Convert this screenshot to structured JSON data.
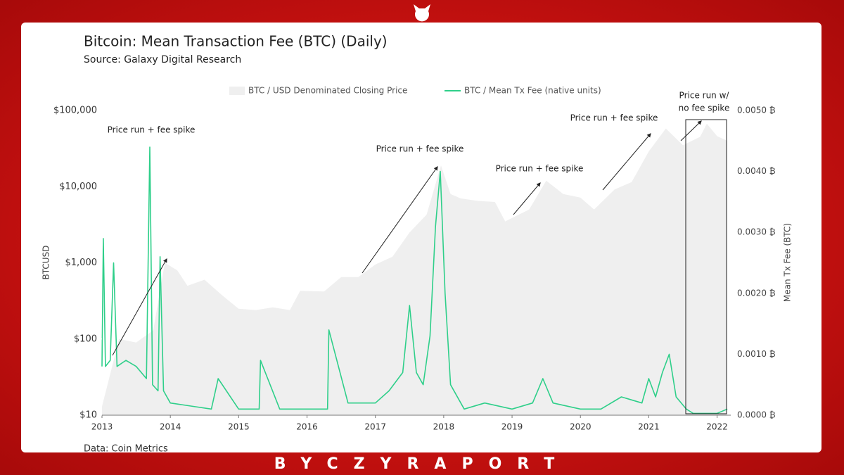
{
  "chart_data": {
    "type": "area-line",
    "title": "Bitcoin: Mean Transaction Fee (BTC) (Daily)",
    "subtitle": "Source: Galaxy Digital Research",
    "source": "Data: Coin Metrics",
    "brand": "BYCZYRAPORT",
    "y_label": "BTCUSD",
    "y2_label": "Mean Tx Fee (BTC)",
    "y_scale": "log",
    "xlim": [
      2013,
      2022.2
    ],
    "xticks": [
      2013,
      2014,
      2015,
      2016,
      2017,
      2018,
      2019,
      2020,
      2021,
      2022
    ],
    "ylim": [
      10,
      100000
    ],
    "yticks": [
      {
        "value": 10,
        "label": "$10"
      },
      {
        "value": 100,
        "label": "$100"
      },
      {
        "value": 1000,
        "label": "$1,000"
      },
      {
        "value": 10000,
        "label": "$10,000"
      },
      {
        "value": 100000,
        "label": "$100,000"
      }
    ],
    "y2lim": [
      0,
      0.005
    ],
    "y2ticks": [
      {
        "value": 0,
        "label": "0.0000 ₿"
      },
      {
        "value": 0.001,
        "label": "0.0010 ₿"
      },
      {
        "value": 0.002,
        "label": "0.0020 ₿"
      },
      {
        "value": 0.003,
        "label": "0.0030 ₿"
      },
      {
        "value": 0.004,
        "label": "0.0040 ₿"
      },
      {
        "value": 0.005,
        "label": "0.0050 ₿"
      }
    ],
    "series": [
      {
        "name": "BTC / USD Denominated Closing Price",
        "color": "#efefef",
        "x": [
          2013.0,
          2013.25,
          2013.5,
          2013.75,
          2013.92,
          2014.1,
          2014.25,
          2014.5,
          2014.75,
          2015.0,
          2015.25,
          2015.5,
          2015.75,
          2015.9,
          2016.25,
          2016.5,
          2016.75,
          2017.0,
          2017.25,
          2017.5,
          2017.75,
          2017.96,
          2018.1,
          2018.25,
          2018.5,
          2018.75,
          2018.9,
          2019.25,
          2019.5,
          2019.75,
          2020.0,
          2020.2,
          2020.5,
          2020.75,
          2021.0,
          2021.25,
          2021.5,
          2021.75,
          2021.85,
          2022.0,
          2022.15
        ],
        "values": [
          13,
          100,
          90,
          130,
          1000,
          800,
          500,
          600,
          380,
          250,
          240,
          260,
          240,
          430,
          420,
          650,
          650,
          950,
          1200,
          2500,
          4300,
          19000,
          8000,
          7000,
          6500,
          6300,
          3500,
          5000,
          12000,
          8000,
          7200,
          5000,
          9200,
          11500,
          29000,
          58000,
          35000,
          45000,
          67000,
          46000,
          40000
        ]
      },
      {
        "name": "BTC / Mean Tx Fee (native units)",
        "color": "#2fcf8a",
        "axis": "y2",
        "x": [
          2013.0,
          2013.02,
          2013.05,
          2013.12,
          2013.17,
          2013.22,
          2013.35,
          2013.5,
          2013.65,
          2013.7,
          2013.74,
          2013.82,
          2013.85,
          2013.9,
          2014.0,
          2014.3,
          2014.6,
          2014.7,
          2015.0,
          2015.3,
          2015.32,
          2015.6,
          2016.0,
          2016.3,
          2016.32,
          2016.6,
          2017.0,
          2017.2,
          2017.4,
          2017.5,
          2017.6,
          2017.7,
          2017.8,
          2017.88,
          2017.95,
          2018.02,
          2018.1,
          2018.3,
          2018.6,
          2019.0,
          2019.3,
          2019.45,
          2019.6,
          2020.0,
          2020.3,
          2020.6,
          2020.9,
          2021.0,
          2021.1,
          2021.2,
          2021.3,
          2021.4,
          2021.55,
          2021.65,
          2022.0,
          2022.15
        ],
        "values": [
          0.0008,
          0.0029,
          0.0008,
          0.0009,
          0.0025,
          0.0008,
          0.0009,
          0.0008,
          0.0006,
          0.0044,
          0.0005,
          0.0004,
          0.0026,
          0.0004,
          0.0002,
          0.00015,
          0.0001,
          0.0006,
          0.0001,
          0.0001,
          0.0009,
          0.0001,
          0.0001,
          0.0001,
          0.0014,
          0.0002,
          0.0002,
          0.0004,
          0.0007,
          0.0018,
          0.0007,
          0.0005,
          0.0013,
          0.0031,
          0.004,
          0.002,
          0.0005,
          0.0001,
          0.0002,
          0.0001,
          0.0002,
          0.0006,
          0.0002,
          0.0001,
          0.0001,
          0.0003,
          0.0002,
          0.0006,
          0.0003,
          0.0007,
          0.001,
          0.0003,
          0.0001,
          3e-05,
          3e-05,
          0.0001
        ]
      }
    ],
    "annotations": [
      {
        "lines": [
          "Price run + fee spike"
        ]
      },
      {
        "lines": [
          "Price run + fee spike"
        ]
      },
      {
        "lines": [
          "Price run + fee spike"
        ]
      },
      {
        "lines": [
          "Price run + fee spike"
        ]
      },
      {
        "lines": [
          "Price run w/",
          "no fee spike"
        ]
      }
    ]
  }
}
